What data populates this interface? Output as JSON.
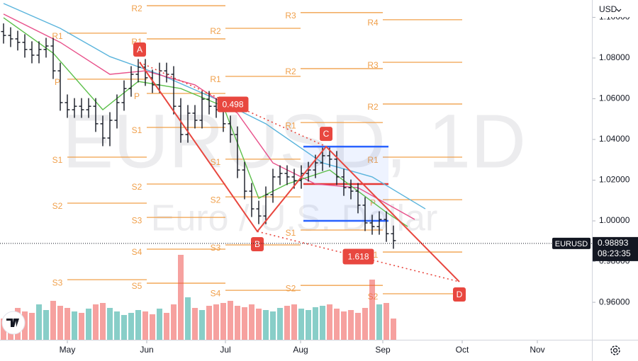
{
  "chart_data": {
    "type": "ohlc",
    "symbol_watermark": "EURUSD, 1D",
    "description_watermark": "Euro / U.S. Dollar",
    "currency": "USD",
    "xlim": [
      -0.5,
      83
    ],
    "xticks": [
      {
        "value": 9,
        "label": "May"
      },
      {
        "value": 20.2,
        "label": "Jun"
      },
      {
        "value": 31.3,
        "label": "Jul"
      },
      {
        "value": 41.9,
        "label": "Aug"
      },
      {
        "value": 53.5,
        "label": "Sep"
      },
      {
        "value": 64.7,
        "label": "Oct"
      },
      {
        "value": 75.3,
        "label": "Nov"
      }
    ],
    "ylim": [
      0.9416,
      1.1085
    ],
    "yticks": [
      {
        "value": 0.96,
        "label": "0.96000"
      },
      {
        "value": 0.98,
        "label": "0.98000"
      },
      {
        "value": 1.0,
        "label": "1.00000"
      },
      {
        "value": 1.02,
        "label": "1.02000"
      },
      {
        "value": 1.04,
        "label": "1.04000"
      },
      {
        "value": 1.06,
        "label": "1.06000"
      },
      {
        "value": 1.08,
        "label": "1.08000"
      },
      {
        "value": 1.1,
        "label": "1.10000"
      }
    ],
    "bar_color": "#131722",
    "volume_up_color": "#26a69a",
    "volume_down_color": "#ef5350",
    "open": [
      1.093,
      1.0911,
      1.0894,
      1.0877,
      1.0842,
      1.0814,
      1.0842,
      1.0859,
      1.0737,
      1.0581,
      1.0546,
      1.0563,
      1.0546,
      1.0563,
      1.0477,
      1.0407,
      1.0494,
      1.0581,
      1.065,
      1.072,
      1.0755,
      1.0703,
      1.0668,
      1.0737,
      1.072,
      1.0563,
      1.0424,
      1.0529,
      1.0494,
      1.0598,
      1.0563,
      1.0546,
      1.0477,
      1.0424,
      1.025,
      1.0146,
      1.0059,
      1.0024,
      1.0129,
      1.0216,
      1.0233,
      1.0216,
      1.0198,
      1.0233,
      1.025,
      1.0285,
      1.032,
      1.0303,
      1.0216,
      1.0163,
      1.0146,
      1.0077,
      0.999,
      0.9972,
      1.0007,
      0.9937
    ],
    "high": [
      1.097,
      1.0951,
      1.0934,
      1.0917,
      1.0882,
      1.0882,
      1.0899,
      1.0899,
      1.0777,
      1.0621,
      1.0603,
      1.0603,
      1.0603,
      1.0603,
      1.0517,
      1.0534,
      1.0621,
      1.069,
      1.076,
      1.0795,
      1.0795,
      1.0743,
      1.0777,
      1.0777,
      1.076,
      1.0603,
      1.0569,
      1.0569,
      1.0638,
      1.0638,
      1.0603,
      1.0586,
      1.0517,
      1.0464,
      1.029,
      1.0186,
      1.0099,
      1.0169,
      1.0256,
      1.0273,
      1.0273,
      1.0256,
      1.0273,
      1.029,
      1.0325,
      1.036,
      1.036,
      1.0343,
      1.0256,
      1.0203,
      1.0186,
      1.0117,
      1.003,
      1.0047,
      1.0047,
      0.9977
    ],
    "low": [
      1.0871,
      1.0854,
      1.0837,
      1.0802,
      1.0774,
      1.0774,
      1.0802,
      1.0697,
      1.0541,
      1.0506,
      1.0506,
      1.0506,
      1.0506,
      1.0437,
      1.0367,
      1.0367,
      1.0454,
      1.0541,
      1.061,
      1.068,
      1.0663,
      1.0628,
      1.0628,
      1.068,
      1.0523,
      1.0384,
      1.0384,
      1.0454,
      1.0454,
      1.0523,
      1.0506,
      1.0437,
      1.0384,
      1.021,
      1.0106,
      1.0019,
      0.9984,
      0.9984,
      1.0089,
      1.0176,
      1.0176,
      1.0158,
      1.0158,
      1.0193,
      1.021,
      1.0245,
      1.0263,
      1.0176,
      1.0123,
      1.0106,
      1.0037,
      0.995,
      0.9932,
      0.9932,
      0.9897,
      0.9863
    ],
    "close": [
      1.0911,
      1.0894,
      1.0877,
      1.0842,
      1.0814,
      1.0842,
      1.0859,
      1.0737,
      1.0581,
      1.0546,
      1.0563,
      1.0546,
      1.0563,
      1.0477,
      1.0407,
      1.0494,
      1.0581,
      1.065,
      1.072,
      1.0755,
      1.0703,
      1.0668,
      1.0737,
      1.072,
      1.0563,
      1.0424,
      1.0529,
      1.0494,
      1.0598,
      1.0563,
      1.0546,
      1.0477,
      1.0424,
      1.025,
      1.0146,
      1.0059,
      1.0024,
      1.0129,
      1.0216,
      1.0233,
      1.0216,
      1.0198,
      1.0233,
      1.025,
      1.0285,
      1.032,
      1.0303,
      1.0216,
      1.0163,
      1.0146,
      1.0077,
      0.999,
      0.9972,
      1.0007,
      0.9937,
      0.9903
    ],
    "volume": [
      30,
      35,
      45,
      40,
      38,
      50,
      42,
      55,
      48,
      45,
      40,
      38,
      44,
      50,
      52,
      45,
      40,
      35,
      38,
      42,
      40,
      36,
      44,
      38,
      50,
      120,
      60,
      45,
      42,
      48,
      50,
      52,
      55,
      48,
      46,
      50,
      44,
      42,
      40,
      45,
      48,
      50,
      44,
      42,
      46,
      48,
      50,
      44,
      40,
      42,
      38,
      45,
      85,
      50,
      52,
      30
    ],
    "moving_averages": [
      {
        "color": "#5ab4dc",
        "x": [
          0,
          8,
          15,
          22,
          30,
          37,
          45,
          52,
          59.5
        ],
        "values": [
          1.1068,
          1.0946,
          1.0807,
          1.072,
          1.0598,
          1.0477,
          1.0285,
          1.0216,
          1.0059
        ]
      },
      {
        "color": "#e8508a",
        "x": [
          0,
          8,
          15,
          20,
          27,
          33,
          38,
          44,
          50,
          58
        ],
        "values": [
          1.1016,
          1.0877,
          1.072,
          1.0737,
          1.0668,
          1.0529,
          1.0285,
          1.0181,
          1.0163,
          1.0007
        ]
      },
      {
        "color": "#5cbf4a",
        "x": [
          0,
          7,
          14,
          19,
          25,
          31,
          36,
          40,
          46,
          54,
          57
        ],
        "values": [
          1.0998,
          1.0824,
          1.0546,
          1.0685,
          1.065,
          1.0563,
          1.0111,
          1.0181,
          1.025,
          1.0042,
          0.9972
        ]
      }
    ],
    "pivot_color": "#f0a04b",
    "pivots": [
      {
        "levels": [
          {
            "label": "R1",
            "value": 1.0922
          },
          {
            "label": "P",
            "value": 1.0696
          },
          {
            "label": "S1",
            "value": 1.0313
          },
          {
            "label": "S2",
            "value": 1.0087
          },
          {
            "label": "S3",
            "value": 0.9711
          }
        ]
      },
      {
        "levels": [
          {
            "label": "R2",
            "value": 1.1057
          },
          {
            "label": "R1",
            "value": 1.0894
          },
          {
            "label": "P",
            "value": 1.0626
          },
          {
            "label": "S1",
            "value": 1.0459
          },
          {
            "label": "S2",
            "value": 1.0181
          },
          {
            "label": "S3",
            "value": 1.0017
          },
          {
            "label": "S4",
            "value": 0.9861
          },
          {
            "label": "S5",
            "value": 0.9694
          }
        ]
      },
      {
        "levels": [
          {
            "label": "R2",
            "value": 1.0946
          },
          {
            "label": "R1",
            "value": 1.071
          },
          {
            "label": "S1",
            "value": 1.0303
          },
          {
            "label": "S2",
            "value": 1.0118
          },
          {
            "label": "S3",
            "value": 0.9882
          },
          {
            "label": "S4",
            "value": 0.9659
          }
        ]
      },
      {
        "levels": [
          {
            "label": "R3",
            "value": 1.1023
          },
          {
            "label": "R2",
            "value": 1.0748
          },
          {
            "label": "R1",
            "value": 1.0483
          },
          {
            "label": "S1",
            "value": 0.9955
          },
          {
            "label": "S2",
            "value": 0.9683
          }
        ]
      },
      {
        "levels": [
          {
            "label": "R4",
            "value": 1.0988
          },
          {
            "label": "R3",
            "value": 1.0779
          },
          {
            "label": "R2",
            "value": 1.0574
          },
          {
            "label": "R1",
            "value": 1.0313
          },
          {
            "label": "P",
            "value": 1.0104
          },
          {
            "label": "S1",
            "value": 0.9847
          },
          {
            "label": "S2",
            "value": 0.9642
          }
        ]
      }
    ],
    "pattern": {
      "color": "#e8473f",
      "points": [
        {
          "label": "A",
          "x": 19.2,
          "value": 1.0779
        },
        {
          "label": "B",
          "x": 35.8,
          "value": 0.9948
        },
        {
          "label": "C",
          "x": 45.5,
          "value": 1.0365
        },
        {
          "label": "D",
          "x": 64.3,
          "value": 0.9701
        }
      ]
    },
    "ratios": [
      0.498,
      1.618
    ],
    "range_box": {
      "x": [
        42.3,
        54.3
      ],
      "top": 1.0365,
      "bottom": 1.0,
      "poc": 1.0181,
      "color": "#2962ff",
      "poc_color": "#e53935"
    },
    "current_price": {
      "symbol": "EURUSD",
      "value": 0.98893,
      "countdown": "08:23:35"
    }
  }
}
